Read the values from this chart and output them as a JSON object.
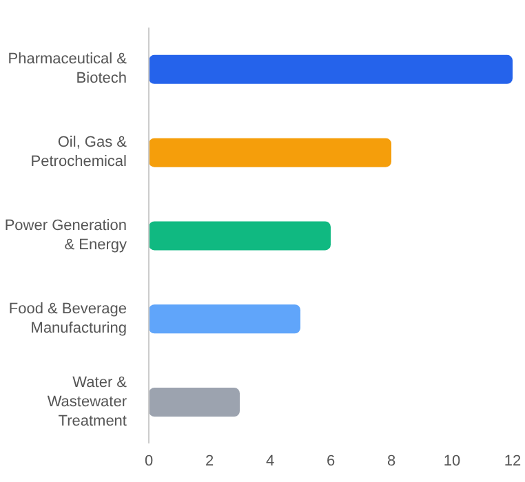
{
  "chart_data": {
    "type": "bar",
    "orientation": "horizontal",
    "categories": [
      "Pharmaceutical & Biotech",
      "Oil, Gas & Petrochemical",
      "Power Generation & Energy",
      "Food & Beverage Manufacturing",
      "Water & Wastewater Treatment"
    ],
    "values": [
      12,
      8,
      6,
      5,
      3
    ],
    "colors": [
      "#2563eb",
      "#f59e0b",
      "#10b981",
      "#60a5fa",
      "#9ca3af"
    ],
    "xlim": [
      0,
      12
    ],
    "xticks": [
      0,
      2,
      4,
      6,
      8,
      10,
      12
    ],
    "grid": false,
    "legend": false
  }
}
